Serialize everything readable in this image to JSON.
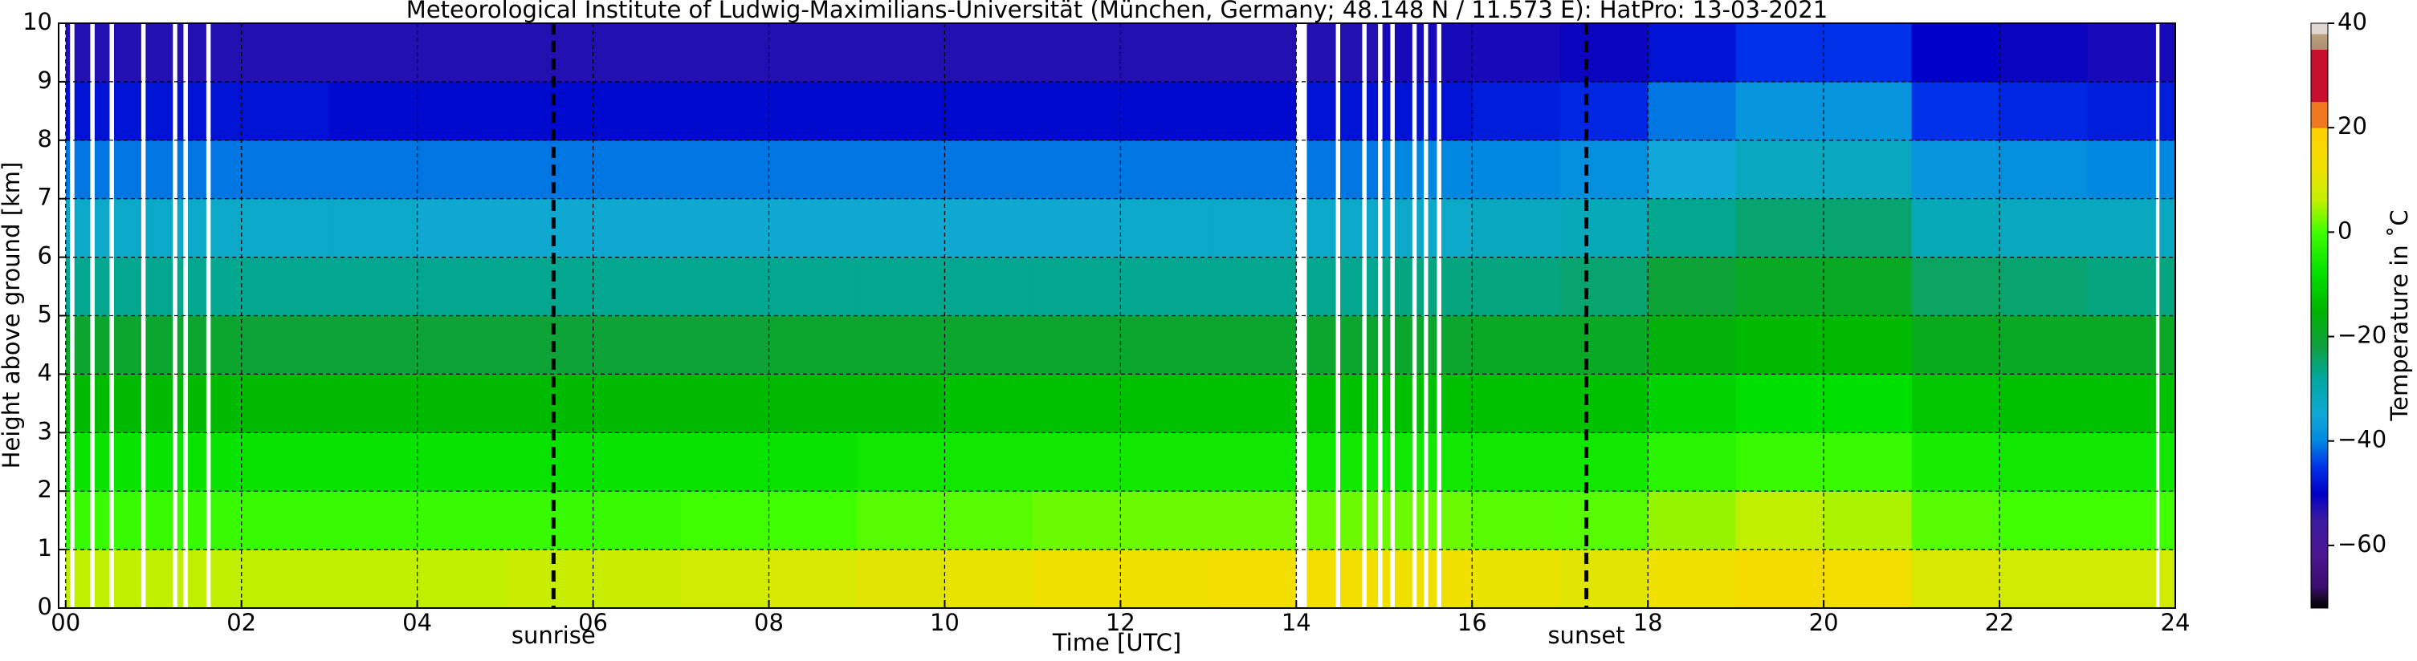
{
  "chart_data": {
    "type": "heatmap",
    "title": "Meteorological Institute of Ludwig-Maximilians-Universität (München, Germany; 48.148 N / 11.573 E):    HatPro: 13-03-2021",
    "xlabel": "Time [UTC]",
    "ylabel": "Height above ground [km]",
    "colorbar_label": "Temperature in ˚C",
    "xlim": [
      -0.08,
      24
    ],
    "ylim": [
      0,
      10
    ],
    "xticks": [
      {
        "value": 0,
        "label": "00"
      },
      {
        "value": 2,
        "label": "02"
      },
      {
        "value": 4,
        "label": "04"
      },
      {
        "value": 6,
        "label": "06"
      },
      {
        "value": 8,
        "label": "08"
      },
      {
        "value": 10,
        "label": "10"
      },
      {
        "value": 12,
        "label": "12"
      },
      {
        "value": 14,
        "label": "14"
      },
      {
        "value": 16,
        "label": "16"
      },
      {
        "value": 18,
        "label": "18"
      },
      {
        "value": 20,
        "label": "20"
      },
      {
        "value": 22,
        "label": "22"
      },
      {
        "value": 24,
        "label": "24"
      }
    ],
    "yticks": [
      0,
      1,
      2,
      3,
      4,
      5,
      6,
      7,
      8,
      9,
      10
    ],
    "grid": true,
    "x": [
      0,
      1,
      2,
      3,
      4,
      5,
      6,
      7,
      8,
      9,
      10,
      11,
      12,
      13,
      14,
      15,
      16,
      17,
      18,
      19,
      20,
      21,
      22,
      23
    ],
    "x_step": 1,
    "y": [
      0,
      1,
      2,
      3,
      4,
      5,
      6,
      7,
      8,
      9
    ],
    "y_step": 1,
    "z": [
      [
        6,
        -1,
        -7,
        -14,
        -20,
        -27,
        -33,
        -41,
        -48,
        -53
      ],
      [
        6,
        -1,
        -7,
        -14,
        -20,
        -27,
        -33,
        -41,
        -48,
        -53
      ],
      [
        6,
        -1,
        -7,
        -14,
        -21,
        -27,
        -33,
        -41,
        -48,
        -53
      ],
      [
        6,
        -1,
        -7,
        -14,
        -21,
        -27,
        -33,
        -41,
        -49,
        -53
      ],
      [
        6,
        -1,
        -7,
        -14,
        -21,
        -27,
        -34,
        -41,
        -49,
        -53
      ],
      [
        7,
        -1,
        -7,
        -14,
        -21,
        -27,
        -34,
        -41,
        -49,
        -53
      ],
      [
        7,
        -1,
        -7,
        -14,
        -21,
        -27,
        -34,
        -41,
        -49,
        -53
      ],
      [
        8,
        0,
        -7,
        -14,
        -21,
        -27,
        -34,
        -41,
        -49,
        -53
      ],
      [
        9,
        0,
        -7,
        -14,
        -20,
        -27,
        -34,
        -41,
        -49,
        -53
      ],
      [
        10,
        1,
        -6,
        -14,
        -20,
        -27,
        -34,
        -41,
        -49,
        -53
      ],
      [
        11,
        1,
        -6,
        -13,
        -20,
        -27,
        -34,
        -41,
        -49,
        -53
      ],
      [
        12,
        2,
        -6,
        -13,
        -20,
        -27,
        -34,
        -41,
        -49,
        -53
      ],
      [
        12,
        2,
        -6,
        -13,
        -20,
        -27,
        -33,
        -41,
        -49,
        -53
      ],
      [
        13,
        2,
        -6,
        -13,
        -20,
        -27,
        -33,
        -41,
        -49,
        -53
      ],
      [
        13,
        2,
        -6,
        -13,
        -20,
        -27,
        -33,
        -41,
        -48,
        -53
      ],
      [
        12,
        2,
        -6,
        -13,
        -20,
        -26,
        -33,
        -40,
        -48,
        -52
      ],
      [
        11,
        1,
        -6,
        -13,
        -19,
        -26,
        -32,
        -40,
        -47,
        -52
      ],
      [
        10,
        1,
        -6,
        -13,
        -19,
        -25,
        -31,
        -39,
        -46,
        -51
      ],
      [
        12,
        4,
        -3,
        -10,
        -16,
        -21,
        -27,
        -35,
        -41,
        -48
      ],
      [
        14,
        6,
        -1,
        -8,
        -14,
        -19,
        -25,
        -32,
        -38,
        -45
      ],
      [
        13,
        5,
        -1,
        -8,
        -14,
        -19,
        -25,
        -32,
        -38,
        -45
      ],
      [
        9,
        1,
        -5,
        -12,
        -18,
        -24,
        -31,
        -38,
        -45,
        -50
      ],
      [
        8,
        0,
        -6,
        -13,
        -19,
        -25,
        -32,
        -39,
        -46,
        -51
      ],
      [
        8,
        0,
        -6,
        -13,
        -19,
        -26,
        -32,
        -40,
        -47,
        -52
      ]
    ],
    "gaps": [
      [
        0.05,
        0.1
      ],
      [
        0.28,
        0.33
      ],
      [
        0.5,
        0.55
      ],
      [
        0.86,
        0.91
      ],
      [
        1.22,
        1.27
      ],
      [
        1.34,
        1.39
      ],
      [
        1.6,
        1.65
      ],
      [
        14.0,
        14.12
      ],
      [
        14.45,
        14.5
      ],
      [
        14.75,
        14.8
      ],
      [
        14.93,
        14.98
      ],
      [
        15.07,
        15.12
      ],
      [
        15.32,
        15.37
      ],
      [
        15.45,
        15.5
      ],
      [
        15.6,
        15.65
      ],
      [
        23.78,
        23.82
      ]
    ],
    "gap_color": "#ffffff",
    "annotations": [
      {
        "text": "sunrise",
        "x": 5.55
      },
      {
        "text": "sunset",
        "x": 17.3
      }
    ],
    "colorbar_lim": [
      -72,
      40
    ],
    "colorbar_ticks": [
      {
        "value": -60,
        "label": "−60"
      },
      {
        "value": -40,
        "label": "−40"
      },
      {
        "value": -20,
        "label": "−20"
      },
      0,
      20,
      40
    ],
    "colormap": [
      {
        "value": -72,
        "color": "#000000"
      },
      {
        "value": -70,
        "color": "#1a0a30"
      },
      {
        "value": -68,
        "color": "#3b0a6e"
      },
      {
        "value": -62,
        "color": "#4a1590"
      },
      {
        "value": -55,
        "color": "#3a1aa0"
      },
      {
        "value": -50,
        "color": "#0000c8"
      },
      {
        "value": -45,
        "color": "#0030e8"
      },
      {
        "value": -40,
        "color": "#0088e0"
      },
      {
        "value": -35,
        "color": "#10a8d8"
      },
      {
        "value": -28,
        "color": "#00a8a0"
      },
      {
        "value": -22,
        "color": "#10a040"
      },
      {
        "value": -15,
        "color": "#00b400"
      },
      {
        "value": -8,
        "color": "#00e000"
      },
      {
        "value": 0,
        "color": "#40ff00"
      },
      {
        "value": 6,
        "color": "#c0f000"
      },
      {
        "value": 12,
        "color": "#f0e000"
      },
      {
        "value": 20,
        "color": "#ffd000"
      },
      {
        "value": 20,
        "color": "#f07820"
      },
      {
        "value": 25,
        "color": "#f07820"
      },
      {
        "value": 25,
        "color": "#c8102e"
      },
      {
        "value": 35,
        "color": "#c8102e"
      },
      {
        "value": 35,
        "color": "#a89070"
      },
      {
        "value": 38,
        "color": "#c0a080"
      },
      {
        "value": 38,
        "color": "#e0d8d0"
      },
      {
        "value": 40,
        "color": "#e0d8d0"
      }
    ]
  }
}
